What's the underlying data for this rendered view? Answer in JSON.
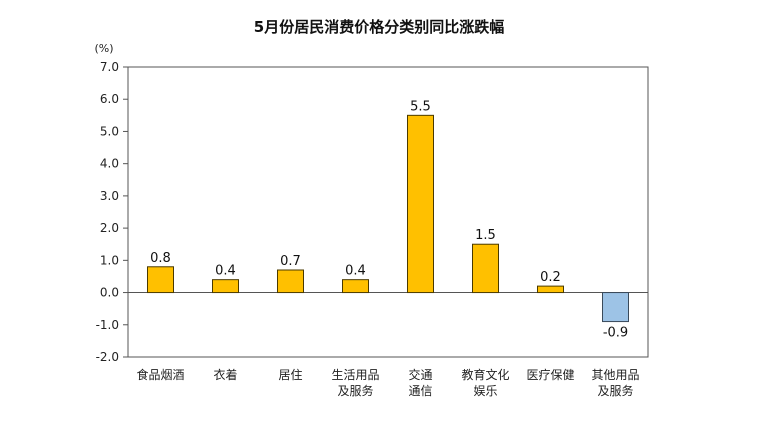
{
  "chart_data": {
    "type": "bar",
    "title": "5月份居民消费价格分类别同比涨跌幅",
    "unit_label": "(%)",
    "ylim": [
      -2.0,
      7.0
    ],
    "ytick_step": 1.0,
    "ytick_labels": [
      "7.0",
      "6.0",
      "5.0",
      "4.0",
      "3.0",
      "2.0",
      "1.0",
      "0.0",
      "-1.0",
      "-2.0"
    ],
    "categories": [
      [
        "食品烟酒"
      ],
      [
        "衣着"
      ],
      [
        "居住"
      ],
      [
        "生活用品",
        "及服务"
      ],
      [
        "交通",
        "通信"
      ],
      [
        "教育文化",
        "娱乐"
      ],
      [
        "医疗保健"
      ],
      [
        "其他用品",
        "及服务"
      ]
    ],
    "values": [
      0.8,
      0.4,
      0.7,
      0.4,
      5.5,
      1.5,
      0.2,
      -0.9
    ],
    "value_labels": [
      "0.8",
      "0.4",
      "0.7",
      "0.4",
      "5.5",
      "1.5",
      "0.2",
      "-0.9"
    ],
    "grid": false,
    "colors": {
      "positive_fill": "#FFC000",
      "positive_stroke": "#4a3a00",
      "negative_fill": "#9DC3E6",
      "negative_stroke": "#3a4a5a",
      "axis": "#555555"
    }
  }
}
